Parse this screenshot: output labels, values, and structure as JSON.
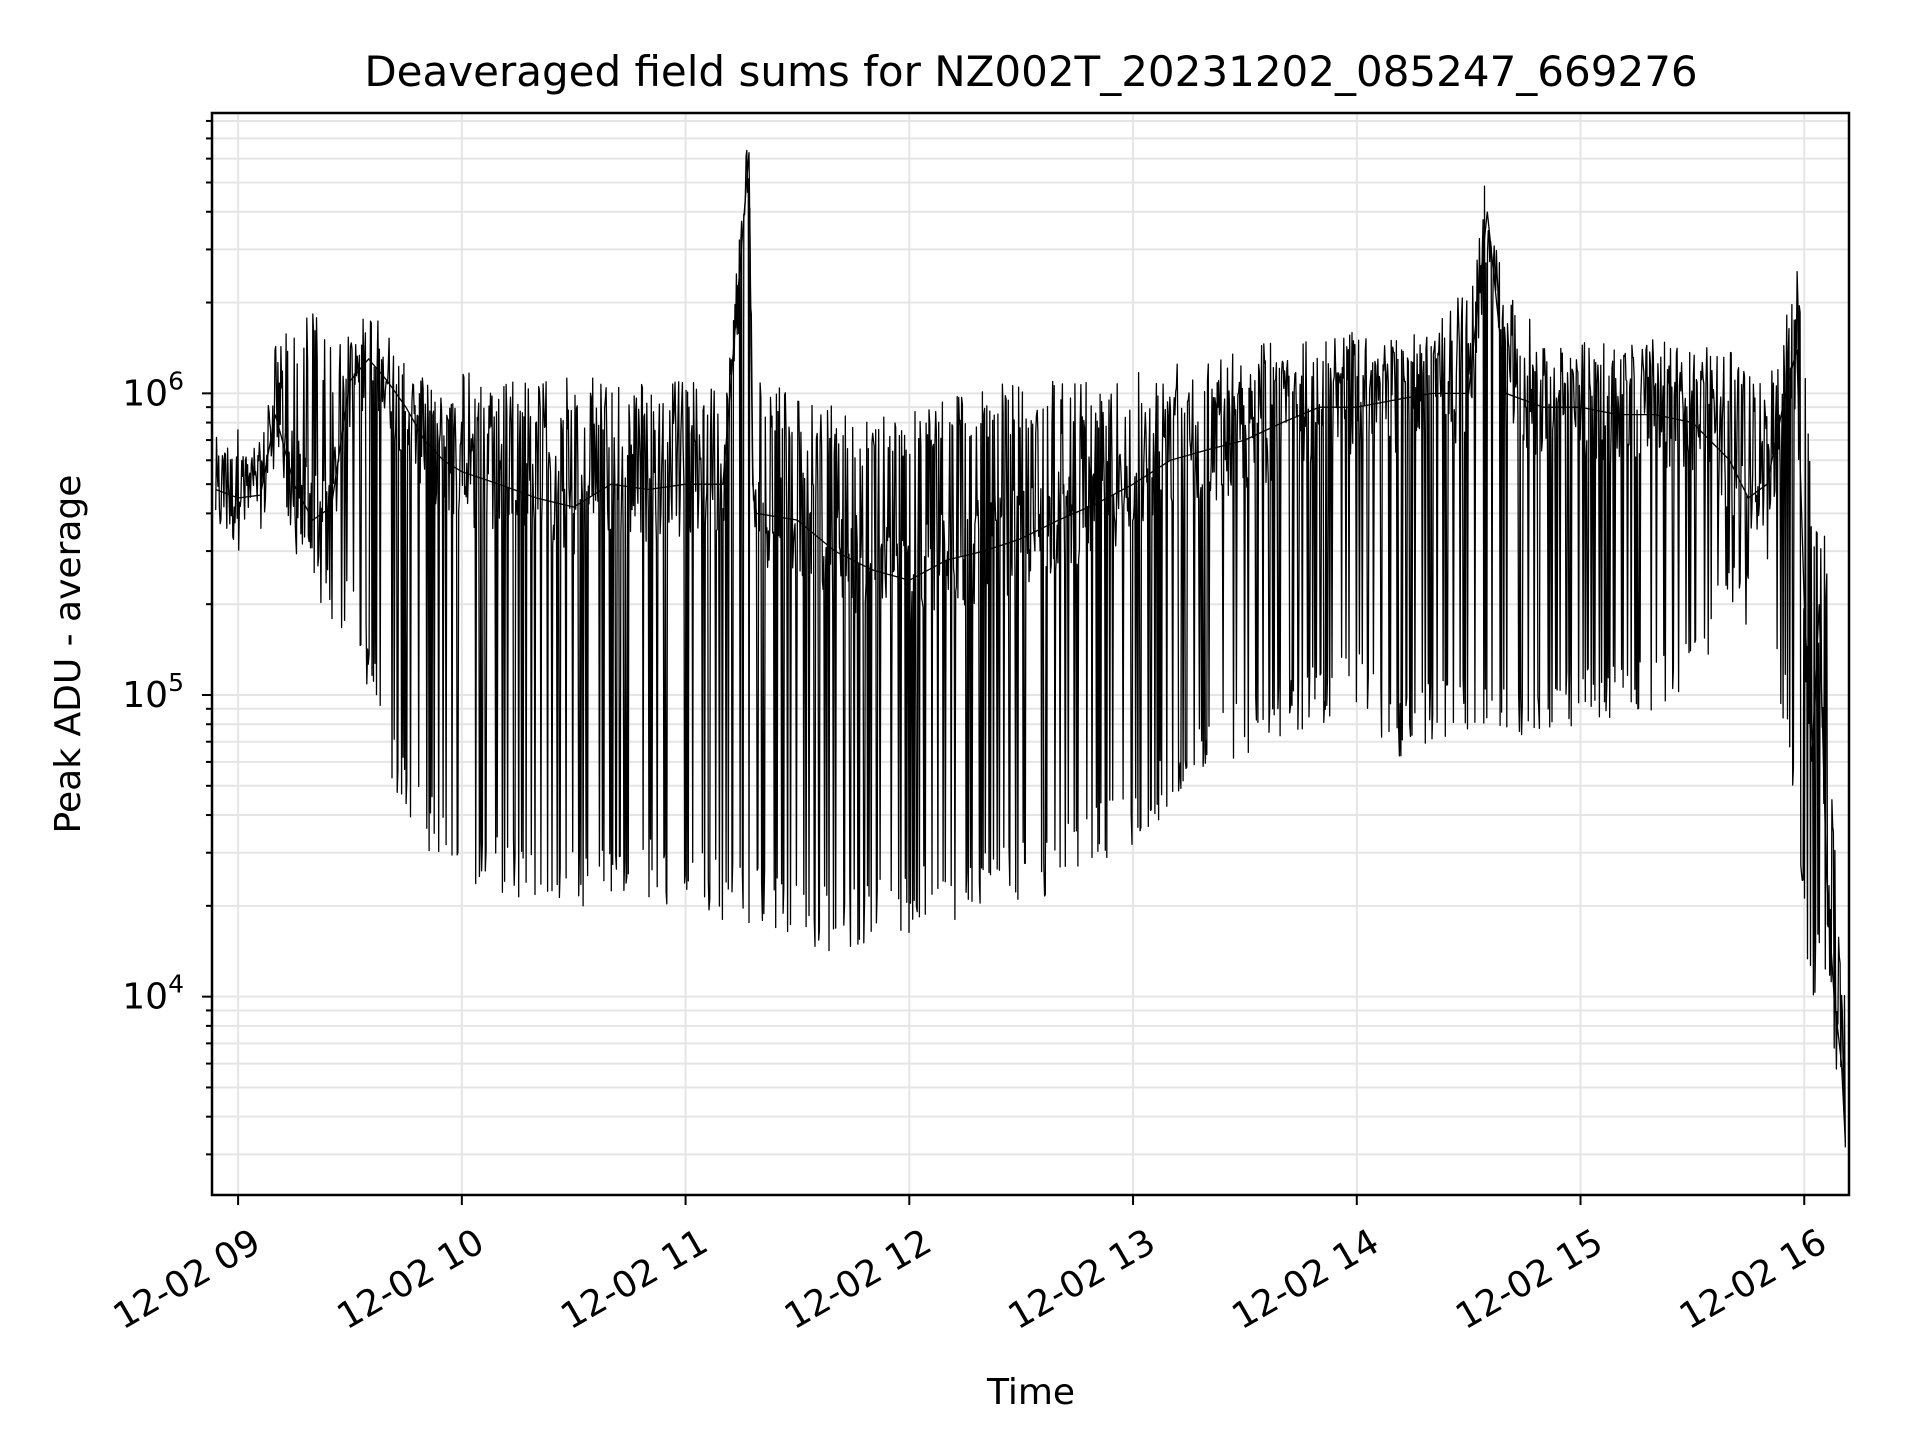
{
  "chart_data": {
    "type": "line",
    "title": "Deaveraged field sums for NZ002T_20231202_085247_669276",
    "xlabel": "Time",
    "ylabel": "Peak ADU - average",
    "x_tick_labels": [
      "12-02 09",
      "12-02 10",
      "12-02 11",
      "12-02 12",
      "12-02 13",
      "12-02 14",
      "12-02 15",
      "12-02 16"
    ],
    "y_tick_labels": [
      {
        "base": "10",
        "exp": "4",
        "value": 10000
      },
      {
        "base": "10",
        "exp": "5",
        "value": 100000
      },
      {
        "base": "10",
        "exp": "6",
        "value": 1000000
      }
    ],
    "xlim": [
      "2023-12-02 08:53",
      "2023-12-02 16:12"
    ],
    "ylim": [
      2200,
      8500000
    ],
    "yscale": "log",
    "grid": true,
    "grid_color": "#e5e5e5",
    "line_color": "#000000",
    "series": [
      {
        "x": [
          "2023-12-02 08:54",
          "2023-12-02 09:00",
          "2023-12-02 09:06",
          "2023-12-02 09:10",
          "2023-12-02 09:15",
          "2023-12-02 09:20",
          "2023-12-02 09:25",
          "2023-12-02 09:30",
          "2023-12-02 09:35",
          "2023-12-02 09:40",
          "2023-12-02 09:45",
          "2023-12-02 09:50",
          "2023-12-02 09:55",
          "2023-12-02 10:00",
          "2023-12-02 10:10",
          "2023-12-02 10:20",
          "2023-12-02 10:30",
          "2023-12-02 10:40",
          "2023-12-02 10:50",
          "2023-12-02 11:00",
          "2023-12-02 11:10",
          "2023-12-02 11:17",
          "2023-12-02 11:18",
          "2023-12-02 11:19",
          "2023-12-02 11:30",
          "2023-12-02 11:40",
          "2023-12-02 11:50",
          "2023-12-02 12:00",
          "2023-12-02 12:10",
          "2023-12-02 12:20",
          "2023-12-02 12:30",
          "2023-12-02 12:40",
          "2023-12-02 12:50",
          "2023-12-02 13:00",
          "2023-12-02 13:10",
          "2023-12-02 13:20",
          "2023-12-02 13:30",
          "2023-12-02 13:40",
          "2023-12-02 13:50",
          "2023-12-02 14:00",
          "2023-12-02 14:10",
          "2023-12-02 14:20",
          "2023-12-02 14:30",
          "2023-12-02 14:35",
          "2023-12-02 14:40",
          "2023-12-02 14:50",
          "2023-12-02 15:00",
          "2023-12-02 15:10",
          "2023-12-02 15:20",
          "2023-12-02 15:30",
          "2023-12-02 15:40",
          "2023-12-02 15:45",
          "2023-12-02 15:50",
          "2023-12-02 15:55",
          "2023-12-02 15:58",
          "2023-12-02 16:00",
          "2023-12-02 16:02",
          "2023-12-02 16:04",
          "2023-12-02 16:06",
          "2023-12-02 16:08",
          "2023-12-02 16:10",
          "2023-12-02 16:11"
        ],
        "y": [
          480000,
          450000,
          460000,
          850000,
          500000,
          380000,
          420000,
          1100000,
          1300000,
          1100000,
          900000,
          700000,
          600000,
          550000,
          500000,
          450000,
          420000,
          500000,
          480000,
          500000,
          500000,
          6300000,
          500000,
          400000,
          380000,
          300000,
          260000,
          240000,
          280000,
          300000,
          330000,
          380000,
          430000,
          500000,
          600000,
          650000,
          700000,
          800000,
          900000,
          900000,
          950000,
          1000000,
          1000000,
          4000000,
          1000000,
          900000,
          900000,
          850000,
          850000,
          800000,
          600000,
          450000,
          500000,
          1000000,
          1400000,
          200000,
          60000,
          200000,
          25000,
          10000,
          6000,
          3300
        ],
        "lower": [
          400000,
          380000,
          350000,
          600000,
          250000,
          200000,
          180000,
          150000,
          100000,
          60000,
          35000,
          30000,
          25000,
          24000,
          22000,
          20000,
          19000,
          20000,
          21000,
          19000,
          18000,
          17000,
          17000,
          17000,
          15000,
          14000,
          15000,
          16000,
          17000,
          18000,
          20000,
          22000,
          26000,
          30000,
          40000,
          50000,
          60000,
          70000,
          80000,
          85000,
          60000,
          70000,
          70000,
          80000,
          70000,
          70000,
          75000,
          80000,
          90000,
          100000,
          200000,
          150000,
          200000,
          70000,
          40000,
          15000,
          10000,
          10000,
          10000,
          6000,
          4500,
          3300
        ],
        "upper": [
          700000,
          800000,
          700000,
          1500000,
          1800000,
          1900000,
          1500000,
          1600000,
          1400000,
          1300000,
          1200000,
          1200000,
          1100000,
          1200000,
          1100000,
          1100000,
          1150000,
          1100000,
          1100000,
          1100000,
          1100000,
          6300000,
          1100000,
          1100000,
          1000000,
          900000,
          850000,
          900000,
          1000000,
          1050000,
          1100000,
          1100000,
          1150000,
          1200000,
          1300000,
          1400000,
          1500000,
          1500000,
          1600000,
          1600000,
          1600000,
          1700000,
          2300000,
          4000000,
          2200000,
          1600000,
          1500000,
          1600000,
          1500000,
          1500000,
          1400000,
          1200000,
          1100000,
          1800000,
          2800000,
          1800000,
          400000,
          450000,
          300000,
          35000,
          13000,
          11000
        ]
      }
    ]
  }
}
